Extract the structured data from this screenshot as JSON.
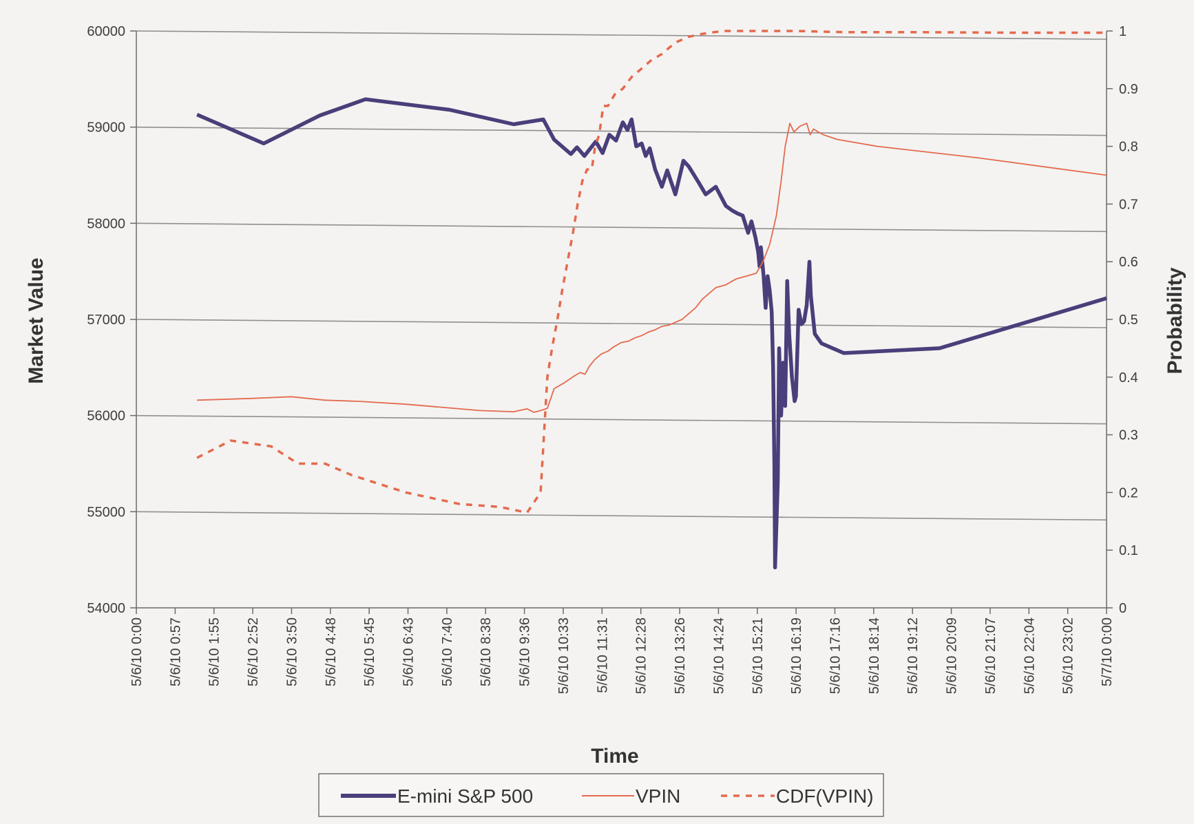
{
  "chart_data": {
    "type": "line",
    "title": "",
    "xlabel": "Time",
    "ylabel": "Market Value",
    "y2label": "Probability",
    "xlim": [
      0,
      1440
    ],
    "ylim": [
      54000,
      60000
    ],
    "y2lim": [
      0,
      1
    ],
    "x_tick_labels": [
      "5/6/10 0:00",
      "5/6/10 0:57",
      "5/6/10 1:55",
      "5/6/10 2:52",
      "5/6/10 3:50",
      "5/6/10 4:48",
      "5/6/10 5:45",
      "5/6/10 6:43",
      "5/6/10 7:40",
      "5/6/10 8:38",
      "5/6/10 9:36",
      "5/6/10 10:33",
      "5/6/10 11:31",
      "5/6/10 12:28",
      "5/6/10 13:26",
      "5/6/10 14:24",
      "5/6/10 15:21",
      "5/6/10 16:19",
      "5/6/10 17:16",
      "5/6/10 18:14",
      "5/6/10 19:12",
      "5/6/10 20:09",
      "5/6/10 21:07",
      "5/6/10 22:04",
      "5/6/10 23:02",
      "5/7/10 0:00"
    ],
    "y_ticks": [
      54000,
      55000,
      56000,
      57000,
      58000,
      59000,
      60000
    ],
    "y2_ticks": [
      "0",
      "0.1",
      "0.2",
      "0.3",
      "0.4",
      "0.5",
      "0.6",
      "0.7",
      "0.8",
      "0.9",
      "1"
    ],
    "grid": "horizontal",
    "legend_position": "bottom",
    "series": [
      {
        "name": "E-mini S&P 500",
        "axis": "left",
        "color": "#4a3f7a",
        "style": "solid-thick",
        "x": [
          90,
          189,
          272,
          340,
          465,
          560,
          604,
          620,
          645,
          654,
          665,
          682,
          692,
          702,
          712,
          722,
          729,
          735,
          742,
          750,
          756,
          762,
          770,
          780,
          788,
          800,
          812,
          820,
          835,
          845,
          860,
          875,
          885,
          893,
          900,
          908,
          913,
          919,
          923,
          925,
          927,
          931,
          934,
          937,
          940,
          943,
          945,
          947,
          948,
          952,
          954,
          957,
          960,
          963,
          966,
          969,
          973,
          977,
          979,
          983,
          987,
          991,
          995,
          999,
          1001,
          1007,
          1017,
          1050,
          1192,
          1440
        ],
        "y": [
          59130,
          58830,
          59120,
          59290,
          59180,
          59030,
          59080,
          58870,
          58720,
          58790,
          58700,
          58850,
          58730,
          58920,
          58860,
          59050,
          58970,
          59080,
          58800,
          58830,
          58700,
          58780,
          58560,
          58380,
          58550,
          58300,
          58650,
          58590,
          58420,
          58300,
          58380,
          58180,
          58130,
          58100,
          58080,
          57900,
          58020,
          57850,
          57700,
          57550,
          57750,
          57450,
          57120,
          57450,
          57300,
          57080,
          56520,
          55500,
          54420,
          55300,
          56700,
          56000,
          56550,
          56100,
          57400,
          56850,
          56400,
          56150,
          56200,
          57100,
          56950,
          56980,
          57150,
          57600,
          57250,
          56850,
          56750,
          56650,
          56700,
          57220
        ]
      },
      {
        "name": "VPIN",
        "axis": "right",
        "color": "#e46a4e",
        "style": "solid-thin",
        "x": [
          90,
          170,
          230,
          280,
          330,
          400,
          450,
          510,
          560,
          580,
          590,
          600,
          610,
          620,
          635,
          650,
          659,
          666,
          672,
          680,
          690,
          700,
          708,
          720,
          730,
          740,
          750,
          760,
          770,
          780,
          790,
          800,
          810,
          820,
          830,
          840,
          850,
          860,
          875,
          890,
          905,
          920,
          930,
          940,
          950,
          957,
          963,
          970,
          976,
          985,
          995,
          1000,
          1005,
          1012,
          1020,
          1040,
          1100,
          1250,
          1440
        ],
        "y": [
          0.36,
          0.363,
          0.366,
          0.36,
          0.358,
          0.353,
          0.348,
          0.342,
          0.34,
          0.345,
          0.339,
          0.342,
          0.346,
          0.38,
          0.39,
          0.402,
          0.408,
          0.405,
          0.418,
          0.43,
          0.44,
          0.445,
          0.452,
          0.46,
          0.462,
          0.468,
          0.472,
          0.478,
          0.482,
          0.488,
          0.49,
          0.495,
          0.5,
          0.51,
          0.52,
          0.535,
          0.545,
          0.555,
          0.56,
          0.57,
          0.575,
          0.58,
          0.6,
          0.63,
          0.68,
          0.74,
          0.8,
          0.84,
          0.825,
          0.835,
          0.84,
          0.82,
          0.83,
          0.825,
          0.82,
          0.812,
          0.8,
          0.78,
          0.75
        ]
      },
      {
        "name": "CDF(VPIN)",
        "axis": "right",
        "color": "#e46a4e",
        "style": "dashed",
        "x": [
          90,
          140,
          200,
          240,
          280,
          320,
          400,
          480,
          540,
          580,
          600,
          610,
          617,
          625,
          632,
          640,
          648,
          655,
          662,
          669,
          676,
          681,
          687,
          693,
          700,
          710,
          722,
          735,
          745,
          755,
          765,
          780,
          790,
          800,
          820,
          840,
          870,
          900,
          940,
          980,
          1050,
          1150,
          1300,
          1440
        ],
        "y": [
          0.26,
          0.29,
          0.28,
          0.25,
          0.25,
          0.23,
          0.2,
          0.18,
          0.175,
          0.165,
          0.2,
          0.4,
          0.45,
          0.5,
          0.55,
          0.6,
          0.65,
          0.7,
          0.74,
          0.76,
          0.76,
          0.8,
          0.82,
          0.87,
          0.87,
          0.89,
          0.9,
          0.92,
          0.93,
          0.94,
          0.95,
          0.96,
          0.97,
          0.98,
          0.99,
          0.995,
          1.0,
          1.0,
          1.0,
          1.0,
          0.998,
          0.998,
          0.997,
          0.997
        ]
      }
    ]
  }
}
